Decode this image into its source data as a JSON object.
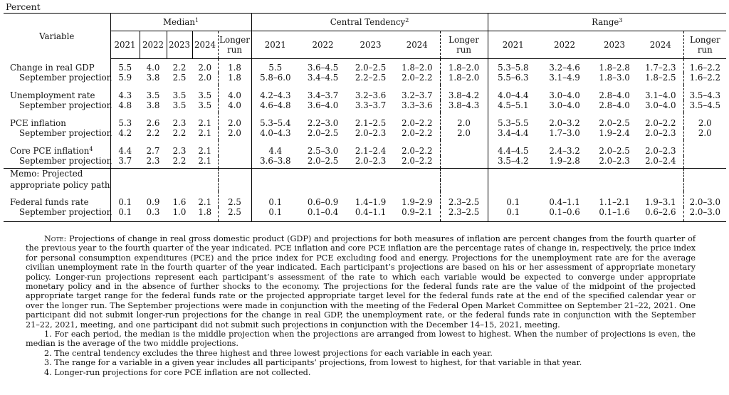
{
  "unit_label": "Percent",
  "header": {
    "variable_label": "Variable",
    "groups": [
      {
        "label": "Median",
        "footnote": "1"
      },
      {
        "label": "Central Tendency",
        "footnote": "2"
      },
      {
        "label": "Range",
        "footnote": "3"
      }
    ],
    "median_cols": [
      "2021",
      "2022",
      "2023",
      "2024"
    ],
    "wide_cols": [
      "2021",
      "2022",
      "2023",
      "2024"
    ],
    "longer_run": [
      "Longer",
      "run"
    ]
  },
  "rows": [
    {
      "label": "Change in real GDP",
      "sep_label": "September projection",
      "current": [
        "5.5",
        "4.0",
        "2.2",
        "2.0",
        "1.8",
        "5.5",
        "3.6–4.5",
        "2.0–2.5",
        "1.8–2.0",
        "1.8–2.0",
        "5.3–5.8",
        "3.2–4.6",
        "1.8–2.8",
        "1.7–2.3",
        "1.6–2.2"
      ],
      "september": [
        "5.9",
        "3.8",
        "2.5",
        "2.0",
        "1.8",
        "5.8–6.0",
        "3.4–4.5",
        "2.2–2.5",
        "2.0–2.2",
        "1.8–2.0",
        "5.5–6.3",
        "3.1–4.9",
        "1.8–3.0",
        "1.8–2.5",
        "1.6–2.2"
      ]
    },
    {
      "label": "Unemployment rate",
      "sep_label": "September projection",
      "current": [
        "4.3",
        "3.5",
        "3.5",
        "3.5",
        "4.0",
        "4.2–4.3",
        "3.4–3.7",
        "3.2–3.6",
        "3.2–3.7",
        "3.8–4.2",
        "4.0–4.4",
        "3.0–4.0",
        "2.8–4.0",
        "3.1–4.0",
        "3.5–4.3"
      ],
      "september": [
        "4.8",
        "3.8",
        "3.5",
        "3.5",
        "4.0",
        "4.6–4.8",
        "3.6–4.0",
        "3.3–3.7",
        "3.3–3.6",
        "3.8–4.3",
        "4.5–5.1",
        "3.0–4.0",
        "2.8–4.0",
        "3.0–4.0",
        "3.5–4.5"
      ]
    },
    {
      "label": "PCE inflation",
      "sep_label": "September projection",
      "current": [
        "5.3",
        "2.6",
        "2.3",
        "2.1",
        "2.0",
        "5.3–5.4",
        "2.2–3.0",
        "2.1–2.5",
        "2.0–2.2",
        "2.0",
        "5.3–5.5",
        "2.0–3.2",
        "2.0–2.5",
        "2.0–2.2",
        "2.0"
      ],
      "september": [
        "4.2",
        "2.2",
        "2.2",
        "2.1",
        "2.0",
        "4.0–4.3",
        "2.0–2.5",
        "2.0–2.3",
        "2.0–2.2",
        "2.0",
        "3.4–4.4",
        "1.7–3.0",
        "1.9–2.4",
        "2.0–2.3",
        "2.0"
      ]
    },
    {
      "label": "Core PCE inflation",
      "label_footnote": "4",
      "sep_label": "September projection",
      "current": [
        "4.4",
        "2.7",
        "2.3",
        "2.1",
        "",
        "4.4",
        "2.5–3.0",
        "2.1–2.4",
        "2.0–2.2",
        "",
        "4.4–4.5",
        "2.4–3.2",
        "2.0–2.5",
        "2.0–2.3",
        ""
      ],
      "september": [
        "3.7",
        "2.3",
        "2.2",
        "2.1",
        "",
        "3.6–3.8",
        "2.0–2.5",
        "2.0–2.3",
        "2.0–2.2",
        "",
        "3.5–4.2",
        "1.9–2.8",
        "2.0–2.3",
        "2.0–2.4",
        ""
      ]
    }
  ],
  "memo": {
    "line1": "Memo: Projected",
    "line2": "appropriate policy path"
  },
  "funds_rate": {
    "label": "Federal funds rate",
    "sep_label": "September projection",
    "current": [
      "0.1",
      "0.9",
      "1.6",
      "2.1",
      "2.5",
      "0.1",
      "0.6–0.9",
      "1.4–1.9",
      "1.9–2.9",
      "2.3–2.5",
      "0.1",
      "0.4–1.1",
      "1.1–2.1",
      "1.9–3.1",
      "2.0–3.0"
    ],
    "september": [
      "0.1",
      "0.3",
      "1.0",
      "1.8",
      "2.5",
      "0.1",
      "0.1–0.4",
      "0.4–1.1",
      "0.9–2.1",
      "2.3–2.5",
      "0.1",
      "0.1–0.6",
      "0.1–1.6",
      "0.6–2.6",
      "2.0–3.0"
    ]
  },
  "notes": {
    "note_label": "Note",
    "note_text": ": Projections of change in real gross domestic product (GDP) and projections for both measures of inflation are percent changes from the fourth quarter of the previous year to the fourth quarter of the year indicated. PCE inflation and core PCE inflation are the percentage rates of change in, respectively, the price index for personal consumption expenditures (PCE) and the price index for PCE excluding food and energy. Projections for the unemployment rate are for the average civilian unemployment rate in the fourth quarter of the year indicated. Each participant’s projections are based on his or her assessment of appropriate monetary policy. Longer-run projections represent each participant’s assessment of the rate to which each variable would be expected to converge under appropriate monetary policy and in the absence of further shocks to the economy. The projections for the federal funds rate are the value of the midpoint of the projected appropriate target range for the federal funds rate or the projected appropriate target level for the federal funds rate at the end of the specified calendar year or over the longer run. The September projections were made in conjunction with the meeting of the Federal Open Market Committee on September 21–22, 2021. One participant did not submit longer-run projections for the change in real GDP, the unemployment rate, or the federal funds rate in conjunction with the September 21–22, 2021, meeting, and one participant did not submit such projections in conjunction with the December 14–15, 2021, meeting.",
    "footnotes": [
      "1. For each period, the median is the middle projection when the projections are arranged from lowest to highest. When the number of projections is even, the median is the average of the two middle projections.",
      "2. The central tendency excludes the three highest and three lowest projections for each variable in each year.",
      "3. The range for a variable in a given year includes all participants’ projections, from lowest to highest, for that variable in that year.",
      "4. Longer-run projections for core PCE inflation are not collected."
    ]
  }
}
